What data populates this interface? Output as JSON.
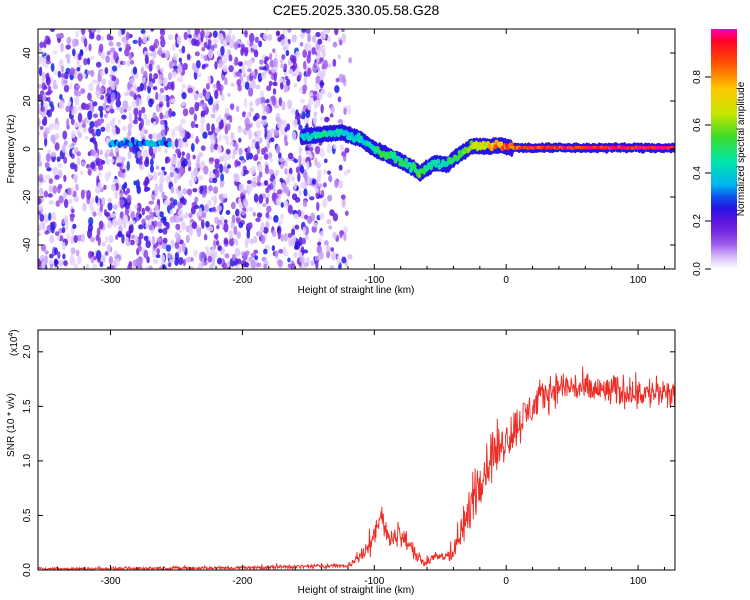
{
  "title": "C2E5.2025.330.05.58.G28",
  "chart_data": [
    {
      "type": "heatmap",
      "panel": "spectrogram",
      "xlabel": "Height of straight line (km)",
      "ylabel": "Frequency (Hz)",
      "xlim": [
        -355,
        128
      ],
      "ylim": [
        -50,
        50
      ],
      "xticks": [
        -300,
        -200,
        -100,
        0,
        100
      ],
      "yticks": [
        -40,
        -20,
        0,
        20,
        40
      ],
      "xtick_labels": [
        "-300",
        "-200",
        "-100",
        "0",
        "100"
      ],
      "ytick_labels": [
        "-40",
        "-20",
        "0",
        "20",
        "40"
      ],
      "noise_region_x": [
        -355,
        -138
      ],
      "signal_trace": [
        {
          "x": -155,
          "freq": 5.0,
          "amp": 0.4
        },
        {
          "x": -140,
          "freq": 6.0,
          "amp": 0.45
        },
        {
          "x": -125,
          "freq": 7.0,
          "amp": 0.42
        },
        {
          "x": -110,
          "freq": 4.0,
          "amp": 0.42
        },
        {
          "x": -100,
          "freq": 0.0,
          "amp": 0.48
        },
        {
          "x": -90,
          "freq": -2.5,
          "amp": 0.52
        },
        {
          "x": -80,
          "freq": -5.0,
          "amp": 0.5
        },
        {
          "x": -70,
          "freq": -8.0,
          "amp": 0.5
        },
        {
          "x": -65,
          "freq": -10.0,
          "amp": 0.52
        },
        {
          "x": -55,
          "freq": -6.0,
          "amp": 0.45
        },
        {
          "x": -45,
          "freq": -6.5,
          "amp": 0.5
        },
        {
          "x": -35,
          "freq": -2.0,
          "amp": 0.55
        },
        {
          "x": -25,
          "freq": 1.5,
          "amp": 0.62
        },
        {
          "x": -15,
          "freq": 1.0,
          "amp": 0.7
        },
        {
          "x": -5,
          "freq": 1.5,
          "amp": 0.85
        },
        {
          "x": 5,
          "freq": 0.5,
          "amp": 0.92
        },
        {
          "x": 128,
          "freq": 0.5,
          "amp": 1.0
        }
      ],
      "weak_band": {
        "x_range": [
          -300,
          -255
        ],
        "freq": 2.5,
        "amp": 0.3
      },
      "colorbar": {
        "label": "Normalized spectral amplitude",
        "range": [
          0,
          1
        ],
        "ticks": [
          0.0,
          0.2,
          0.4,
          0.6,
          0.8
        ],
        "tick_labels": [
          "0.0",
          "0.2",
          "0.4",
          "0.6",
          "0.8"
        ]
      }
    },
    {
      "type": "line",
      "panel": "snr",
      "xlabel": "Height of straight line (km)",
      "ylabel": "SNR (10 * v/v)",
      "exponent_label": "(x10",
      "exponent_power": "4",
      "exponent_close": ")",
      "xlim": [
        -355,
        128
      ],
      "ylim": [
        0,
        2.2
      ],
      "xticks": [
        -300,
        -200,
        -100,
        0,
        100
      ],
      "yticks": [
        0.0,
        0.5,
        1.0,
        1.5,
        2.0
      ],
      "xtick_labels": [
        "-300",
        "-200",
        "-100",
        "0",
        "100"
      ],
      "ytick_labels": [
        "0.0",
        "0.5",
        "1.0",
        "1.5",
        "2.0"
      ],
      "color": "#ee2b24",
      "envelope": {
        "x": [
          -355,
          -200,
          -120,
          -105,
          -100,
          -95,
          -88,
          -82,
          -70,
          -62,
          -58,
          -50,
          -40,
          -30,
          -25,
          -20,
          -10,
          0,
          10,
          20,
          30,
          40,
          50,
          60,
          80,
          100,
          128
        ],
        "mean": [
          0.01,
          0.02,
          0.04,
          0.18,
          0.35,
          0.5,
          0.25,
          0.35,
          0.18,
          0.04,
          0.1,
          0.12,
          0.15,
          0.45,
          0.7,
          0.85,
          1.05,
          1.2,
          1.35,
          1.5,
          1.62,
          1.68,
          1.68,
          1.65,
          1.64,
          1.63,
          1.6
        ],
        "spread": [
          0.01,
          0.015,
          0.02,
          0.08,
          0.12,
          0.13,
          0.08,
          0.1,
          0.07,
          0.02,
          0.05,
          0.05,
          0.07,
          0.2,
          0.25,
          0.25,
          0.22,
          0.2,
          0.18,
          0.16,
          0.15,
          0.14,
          0.14,
          0.14,
          0.14,
          0.14,
          0.14
        ]
      }
    }
  ]
}
